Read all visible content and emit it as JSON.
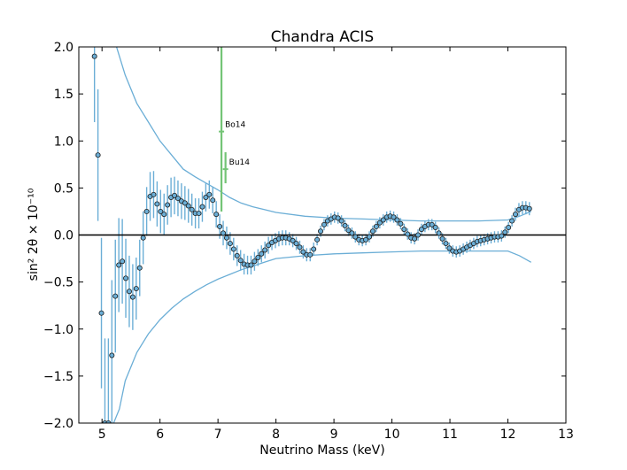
{
  "chart_data": {
    "type": "scatter",
    "title": "Chandra ACIS",
    "xlabel": "Neutrino Mass (keV)",
    "ylabel": "sin² 2θ × 10⁻¹⁰",
    "xlim": [
      4.6,
      13.0
    ],
    "ylim": [
      -2.0,
      2.0
    ],
    "xticks": [
      5,
      6,
      7,
      8,
      9,
      10,
      11,
      12,
      13
    ],
    "yticks": [
      -2.0,
      -1.5,
      -1.0,
      -0.5,
      0.0,
      0.5,
      1.0,
      1.5,
      2.0
    ],
    "xtick_labels": [
      "5",
      "6",
      "7",
      "8",
      "9",
      "10",
      "11",
      "12",
      "13"
    ],
    "ytick_labels": [
      "−2.0",
      "−1.5",
      "−1.0",
      "−0.5",
      "0.0",
      "0.5",
      "1.0",
      "1.5",
      "2.0"
    ],
    "zero_line": 0.0,
    "colors": {
      "points": "#6baed6",
      "errorbars": "#6baed6",
      "envelope": "#6baed6",
      "annotations": "#74c476",
      "axis": "#000000"
    },
    "series": [
      {
        "name": "measurements",
        "x": [
          4.87,
          4.93,
          4.99,
          5.05,
          5.11,
          5.17,
          5.23,
          5.29,
          5.35,
          5.41,
          5.47,
          5.53,
          5.59,
          5.65,
          5.71,
          5.77,
          5.83,
          5.89,
          5.95,
          6.01,
          6.07,
          6.13,
          6.19,
          6.25,
          6.31,
          6.37,
          6.43,
          6.49,
          6.55,
          6.61,
          6.67,
          6.73,
          6.79,
          6.85,
          6.91,
          6.97,
          7.03,
          7.09,
          7.15,
          7.21,
          7.27,
          7.33,
          7.39,
          7.45,
          7.51,
          7.57,
          7.63,
          7.69,
          7.75,
          7.81,
          7.87,
          7.93,
          7.99,
          8.05,
          8.11,
          8.17,
          8.23,
          8.29,
          8.35,
          8.41,
          8.47,
          8.53,
          8.59,
          8.65,
          8.71,
          8.77,
          8.83,
          8.89,
          8.95,
          9.01,
          9.07,
          9.13,
          9.19,
          9.25,
          9.31,
          9.37,
          9.43,
          9.49,
          9.55,
          9.61,
          9.67,
          9.73,
          9.79,
          9.85,
          9.91,
          9.97,
          10.03,
          10.09,
          10.15,
          10.21,
          10.27,
          10.33,
          10.39,
          10.45,
          10.51,
          10.57,
          10.63,
          10.69,
          10.75,
          10.81,
          10.87,
          10.93,
          10.99,
          11.05,
          11.11,
          11.17,
          11.23,
          11.29,
          11.35,
          11.41,
          11.47,
          11.53,
          11.59,
          11.65,
          11.71,
          11.77,
          11.83,
          11.89,
          11.95,
          12.01,
          12.07,
          12.13,
          12.19,
          12.25,
          12.31,
          12.37
        ],
        "y": [
          1.9,
          0.85,
          -0.83,
          -2.0,
          -2.0,
          -1.28,
          -0.65,
          -0.32,
          -0.28,
          -0.46,
          -0.6,
          -0.66,
          -0.57,
          -0.35,
          -0.03,
          0.25,
          0.41,
          0.43,
          0.33,
          0.25,
          0.22,
          0.32,
          0.4,
          0.42,
          0.39,
          0.36,
          0.34,
          0.31,
          0.27,
          0.23,
          0.23,
          0.3,
          0.4,
          0.43,
          0.37,
          0.22,
          0.09,
          0.02,
          -0.03,
          -0.09,
          -0.15,
          -0.22,
          -0.27,
          -0.31,
          -0.32,
          -0.32,
          -0.28,
          -0.24,
          -0.2,
          -0.16,
          -0.11,
          -0.08,
          -0.06,
          -0.04,
          -0.03,
          -0.03,
          -0.04,
          -0.06,
          -0.09,
          -0.13,
          -0.18,
          -0.21,
          -0.21,
          -0.15,
          -0.05,
          0.04,
          0.11,
          0.15,
          0.17,
          0.19,
          0.18,
          0.15,
          0.1,
          0.05,
          0.02,
          -0.02,
          -0.05,
          -0.06,
          -0.05,
          -0.02,
          0.04,
          0.09,
          0.13,
          0.16,
          0.19,
          0.2,
          0.19,
          0.16,
          0.12,
          0.06,
          0.01,
          -0.03,
          -0.04,
          0.0,
          0.06,
          0.09,
          0.11,
          0.11,
          0.08,
          0.02,
          -0.04,
          -0.09,
          -0.14,
          -0.17,
          -0.18,
          -0.17,
          -0.15,
          -0.13,
          -0.11,
          -0.09,
          -0.07,
          -0.06,
          -0.05,
          -0.04,
          -0.03,
          -0.02,
          -0.02,
          -0.01,
          0.03,
          0.08,
          0.15,
          0.22,
          0.27,
          0.29,
          0.29,
          0.28
        ],
        "err": [
          0.7,
          0.7,
          0.8,
          0.9,
          0.9,
          0.8,
          0.6,
          0.5,
          0.45,
          0.42,
          0.38,
          0.35,
          0.33,
          0.3,
          0.28,
          0.26,
          0.26,
          0.25,
          0.24,
          0.23,
          0.22,
          0.21,
          0.21,
          0.2,
          0.19,
          0.19,
          0.18,
          0.18,
          0.17,
          0.16,
          0.16,
          0.16,
          0.15,
          0.15,
          0.14,
          0.14,
          0.13,
          0.13,
          0.12,
          0.12,
          0.12,
          0.11,
          0.11,
          0.11,
          0.1,
          0.1,
          0.1,
          0.09,
          0.09,
          0.09,
          0.09,
          0.08,
          0.08,
          0.08,
          0.08,
          0.08,
          0.07,
          0.07,
          0.07,
          0.07,
          0.07,
          0.07,
          0.07,
          0.07,
          0.06,
          0.06,
          0.06,
          0.06,
          0.06,
          0.06,
          0.06,
          0.06,
          0.06,
          0.06,
          0.06,
          0.06,
          0.06,
          0.06,
          0.06,
          0.06,
          0.06,
          0.06,
          0.06,
          0.06,
          0.06,
          0.06,
          0.06,
          0.06,
          0.06,
          0.06,
          0.06,
          0.06,
          0.06,
          0.06,
          0.06,
          0.06,
          0.06,
          0.06,
          0.06,
          0.06,
          0.06,
          0.06,
          0.06,
          0.06,
          0.06,
          0.06,
          0.06,
          0.06,
          0.06,
          0.06,
          0.06,
          0.06,
          0.06,
          0.06,
          0.06,
          0.06,
          0.06,
          0.06,
          0.06,
          0.06,
          0.06,
          0.07,
          0.07,
          0.07,
          0.07,
          0.07
        ]
      },
      {
        "name": "upper-envelope",
        "x": [
          5.25,
          5.4,
          5.6,
          5.8,
          6.0,
          6.2,
          6.4,
          6.6,
          6.8,
          7.0,
          7.2,
          7.4,
          7.6,
          7.8,
          8.0,
          8.5,
          9.0,
          9.5,
          10.0,
          10.5,
          11.0,
          11.5,
          12.0,
          12.2,
          12.4
        ],
        "y": [
          2.0,
          1.7,
          1.4,
          1.2,
          1.0,
          0.85,
          0.7,
          0.62,
          0.55,
          0.48,
          0.4,
          0.34,
          0.3,
          0.27,
          0.24,
          0.2,
          0.18,
          0.17,
          0.16,
          0.15,
          0.15,
          0.15,
          0.16,
          0.2,
          0.25
        ]
      },
      {
        "name": "lower-envelope",
        "x": [
          5.2,
          5.3,
          5.4,
          5.6,
          5.8,
          6.0,
          6.2,
          6.4,
          6.6,
          6.8,
          7.0,
          7.2,
          7.4,
          7.6,
          7.8,
          8.0,
          8.5,
          9.0,
          9.5,
          10.0,
          10.5,
          11.0,
          11.5,
          12.0,
          12.2,
          12.4
        ],
        "y": [
          -2.0,
          -1.85,
          -1.55,
          -1.25,
          -1.05,
          -0.9,
          -0.78,
          -0.68,
          -0.6,
          -0.53,
          -0.47,
          -0.42,
          -0.37,
          -0.33,
          -0.29,
          -0.25,
          -0.22,
          -0.2,
          -0.19,
          -0.18,
          -0.17,
          -0.17,
          -0.17,
          -0.17,
          -0.22,
          -0.29
        ]
      }
    ],
    "annotations": [
      {
        "label": "Bo14",
        "x": 7.06,
        "y": 1.1,
        "y_low": 0.25,
        "y_high": 2.0
      },
      {
        "label": "Bu14",
        "x": 7.13,
        "y": 0.7,
        "y_low": 0.55,
        "y_high": 0.88
      }
    ]
  }
}
